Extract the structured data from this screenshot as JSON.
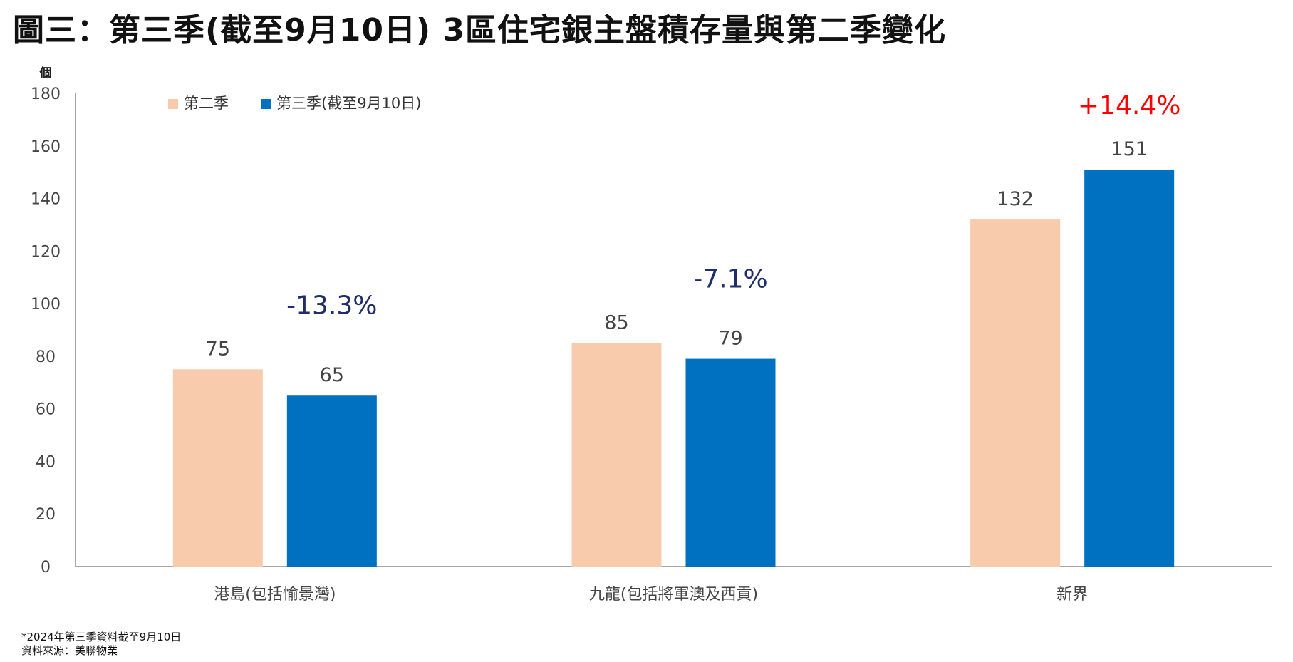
{
  "title": "圖三：第三季(截至9月10日) 3區住宅銀主盤積存量與第二季變化",
  "notes": [
    "*2024年第三季資料截至9月10日",
    "資料來源：美聯物業"
  ],
  "chart_data": {
    "type": "bar",
    "unit_label": "個",
    "categories": [
      "港島(包括愉景灣)",
      "九龍(包括將軍澳及西貢)",
      "新界"
    ],
    "series": [
      {
        "name": "第二季",
        "values": [
          75,
          85,
          132
        ],
        "color": "#F8CBAD"
      },
      {
        "name": "第三季(截至9月10日)",
        "values": [
          65,
          79,
          151
        ],
        "color": "#0070C0"
      }
    ],
    "changes": [
      {
        "label": "-13.3%",
        "color": "#1F2D6B"
      },
      {
        "label": "-7.1%",
        "color": "#1F2D6B"
      },
      {
        "label": "+14.4%",
        "color": "#FF0000"
      }
    ],
    "ylim": [
      0,
      180
    ],
    "yticks": [
      0,
      20,
      40,
      60,
      80,
      100,
      120,
      140,
      160,
      180
    ],
    "grid": false,
    "legend": "top-left"
  }
}
